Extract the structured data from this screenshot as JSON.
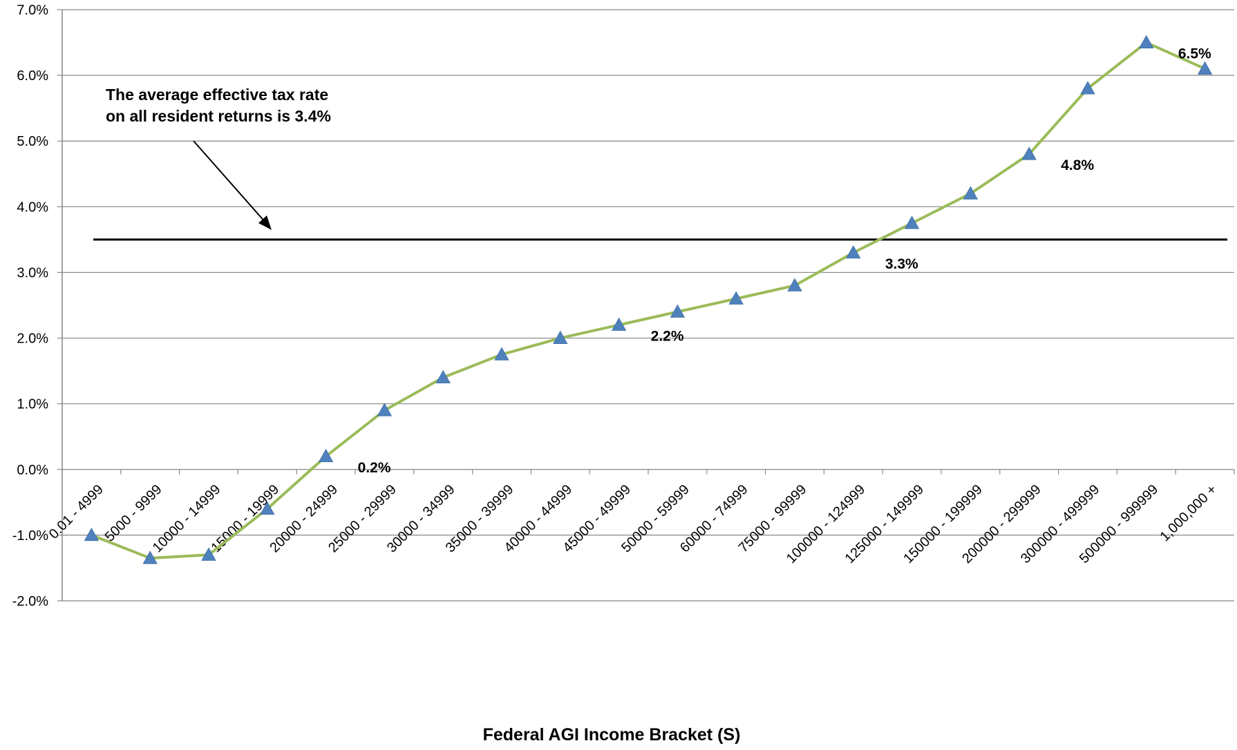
{
  "chart_data": {
    "type": "line",
    "title": "",
    "xlabel": "Federal AGI Income Bracket (S)",
    "ylabel": "",
    "ylim": [
      -2.0,
      7.0
    ],
    "y_tick_step": 1.0,
    "y_format": "percent_1dp",
    "grid": "horizontal",
    "categories": [
      "0.01 - 4999",
      "5000 - 9999",
      "10000 - 14999",
      "15000 - 19999",
      "20000 - 24999",
      "25000 - 29999",
      "30000 - 34999",
      "35000 - 39999",
      "40000 - 44999",
      "45000 - 49999",
      "50000 - 59999",
      "60000 - 74999",
      "75000 - 99999",
      "100000 - 124999",
      "125000 - 149999",
      "150000 - 199999",
      "200000 - 299999",
      "300000 - 499999",
      "500000 - 999999",
      "1,000,000 +"
    ],
    "series": [
      {
        "values": [
          -1.0,
          -1.35,
          -1.3,
          -0.6,
          0.2,
          0.9,
          1.4,
          1.75,
          2.0,
          2.2,
          2.4,
          2.6,
          2.8,
          3.3,
          3.75,
          4.2,
          4.8,
          5.8,
          6.5,
          6.1
        ],
        "color": "#9BBB59",
        "marker": "triangle",
        "marker_color": "#4F81BD"
      }
    ],
    "data_labels": [
      {
        "index": 4,
        "text": "0.2%"
      },
      {
        "index": 9,
        "text": "2.2%"
      },
      {
        "index": 13,
        "text": "3.3%"
      },
      {
        "index": 16,
        "text": "4.8%"
      },
      {
        "index": 18,
        "text": "6.5%"
      }
    ],
    "reference_line": {
      "value": 3.5,
      "color": "#000000"
    },
    "annotation": {
      "lines": [
        "The average effective tax rate",
        "on all resident returns is 3.4%"
      ]
    }
  }
}
